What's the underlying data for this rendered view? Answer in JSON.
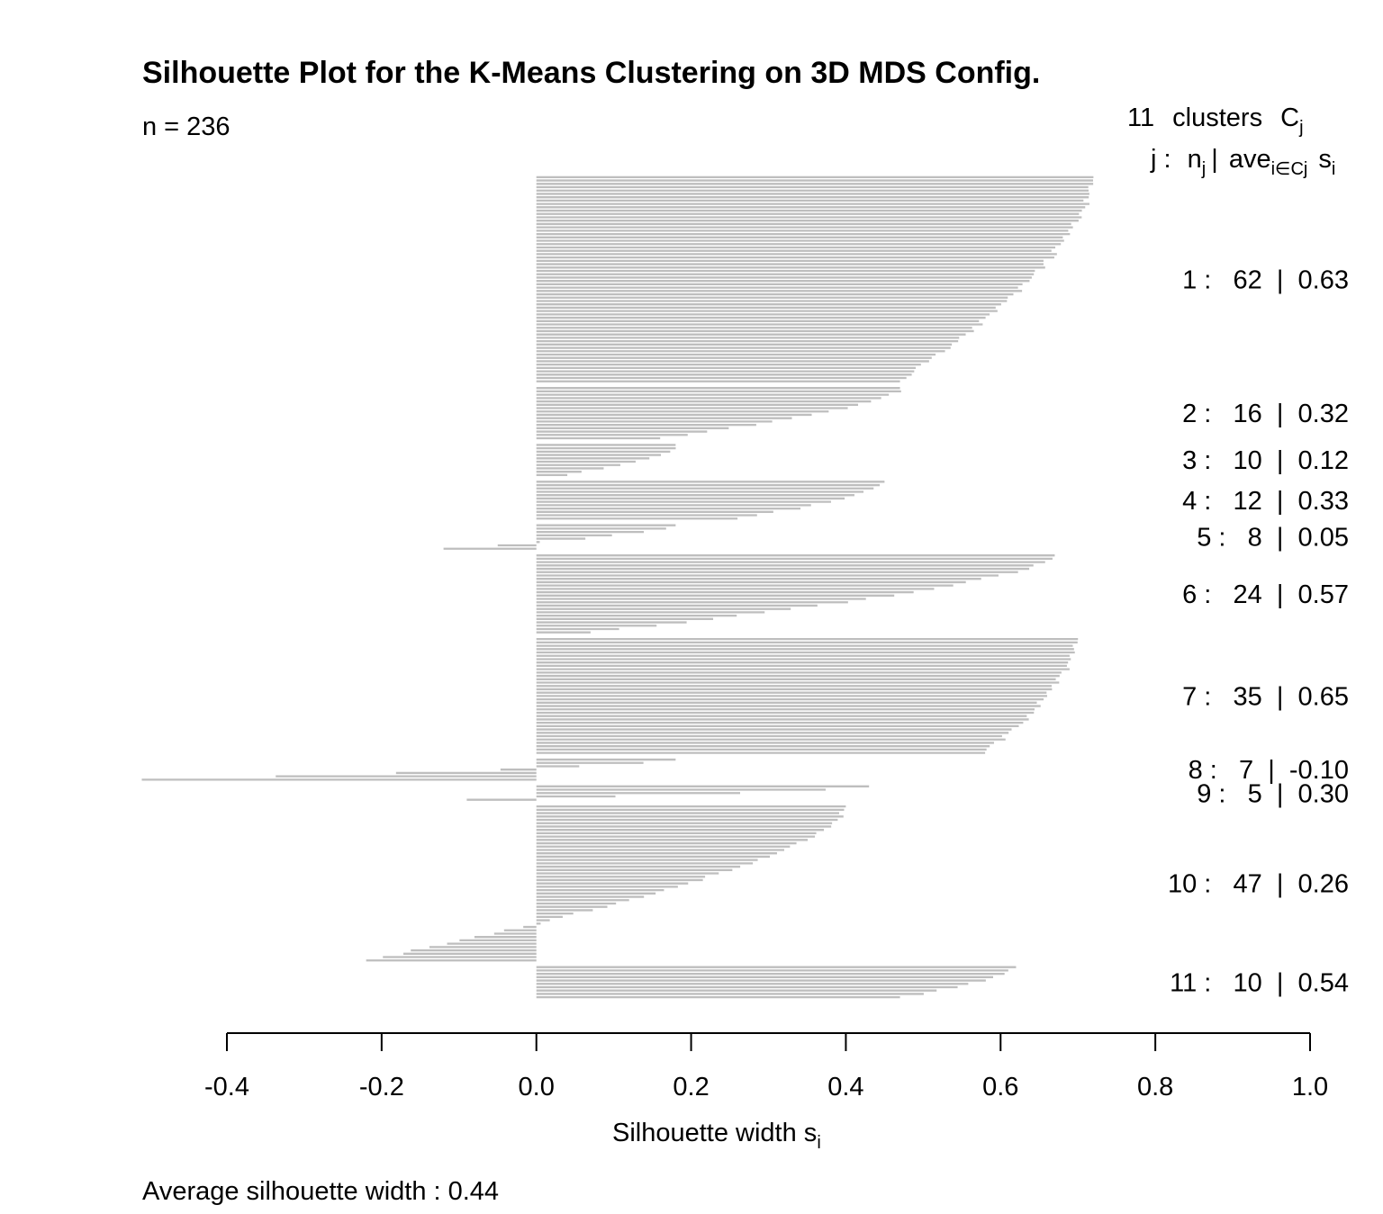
{
  "chart_data": {
    "type": "bar",
    "orientation": "horizontal",
    "title": "Silhouette Plot for the K-Means Clustering on 3D MDS Config.",
    "n_label": "n = 236",
    "clusters_header": {
      "count": "11",
      "text": "clusters",
      "symbol": "C",
      "symbol_sub": "j"
    },
    "column_header": {
      "j": "j :",
      "n": "n",
      "n_sub": "j",
      "sep": "|",
      "ave": "ave",
      "ave_sub": "i∈Cj",
      "s": "s",
      "s_sub": "i"
    },
    "xlabel": {
      "text": "Silhouette width s",
      "sub": "i"
    },
    "footer": "Average silhouette width :  0.44",
    "xlim": [
      -0.4,
      1.0
    ],
    "x_ticks": [
      "-0.4",
      "-0.2",
      "0.0",
      "0.2",
      "0.4",
      "0.6",
      "0.8",
      "1.0"
    ],
    "bar_color": "#BEBEBE",
    "clusters": [
      {
        "label": "1 :   62  |  0.63",
        "top": 0.72,
        "bottom": 0.47,
        "n": 62,
        "ave": 0.63
      },
      {
        "label": "2 :   16  |  0.32",
        "top": 0.47,
        "bottom": 0.16,
        "n": 16,
        "ave": 0.32
      },
      {
        "label": "3 :   10  |  0.12",
        "top": 0.18,
        "bottom": 0.04,
        "n": 10,
        "ave": 0.12
      },
      {
        "label": "4 :   12  |  0.33",
        "top": 0.45,
        "bottom": 0.26,
        "n": 12,
        "ave": 0.33
      },
      {
        "label": "5 :   8  |  0.05",
        "top": 0.18,
        "bottom": -0.12,
        "n": 8,
        "ave": 0.05
      },
      {
        "label": "6 :   24  |  0.57",
        "top": 0.67,
        "bottom": 0.07,
        "n": 24,
        "ave": 0.57
      },
      {
        "label": "7 :   35  |  0.65",
        "top": 0.7,
        "bottom": 0.58,
        "n": 35,
        "ave": 0.65
      },
      {
        "label": "8 :   7  |  -0.10",
        "top": 0.18,
        "bottom": -0.51,
        "n": 7,
        "ave": -0.1
      },
      {
        "label": "9 :   5  |  0.30",
        "top": 0.43,
        "bottom": -0.09,
        "n": 5,
        "ave": 0.3
      },
      {
        "label": "10 :   47  |  0.26",
        "top": 0.4,
        "bottom": -0.22,
        "n": 47,
        "ave": 0.26
      },
      {
        "label": "11 :   10  |  0.54",
        "top": 0.62,
        "bottom": 0.47,
        "n": 10,
        "ave": 0.54
      }
    ]
  }
}
